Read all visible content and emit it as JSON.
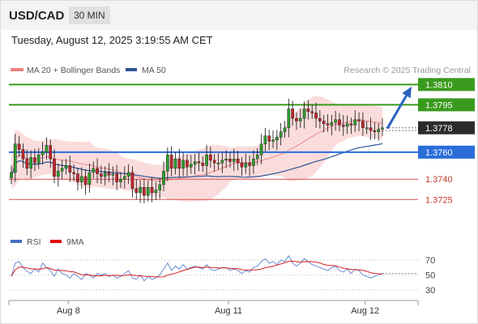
{
  "header": {
    "symbol": "USD/CAD",
    "timeframe": "30 MIN",
    "datetime": "Tuesday, August 12, 2025 3:19:55 AM CET"
  },
  "legend": {
    "ma20": "MA 20 + Bollinger Bands",
    "ma50": "MA 50",
    "ma20_color": "#f08080",
    "ma50_color": "#2e5597",
    "rsi": "RSI",
    "rsi_ma": "9MA",
    "rsi_color": "#4472c4",
    "rsi_ma_color": "#e00000"
  },
  "watermark": "Research © 2025 Trading Central",
  "chart_data": [
    {
      "type": "candlestick",
      "title": "",
      "x_ticks": [
        "Aug 8",
        "Aug 11",
        "Aug 12"
      ],
      "ylim": [
        1.3712,
        1.3815
      ],
      "last_price": "1.3778",
      "levels": [
        {
          "label": "1.3810",
          "value": 1.381,
          "kind": "target",
          "color": "#3a9a1e"
        },
        {
          "label": "1.3795",
          "value": 1.3795,
          "kind": "resistance",
          "color": "#3a9a1e"
        },
        {
          "label": "1.3760",
          "value": 1.376,
          "kind": "pivot",
          "color": "#2a6dd9"
        },
        {
          "label": "1.3740",
          "value": 1.374,
          "kind": "support",
          "color": "#d85050"
        },
        {
          "label": "1.3725",
          "value": 1.3725,
          "kind": "support",
          "color": "#d85050"
        }
      ],
      "close": [
        1.3745,
        1.3766,
        1.3762,
        1.3755,
        1.3748,
        1.3756,
        1.3752,
        1.3758,
        1.376,
        1.3765,
        1.3755,
        1.3742,
        1.3746,
        1.3748,
        1.375,
        1.3745,
        1.3744,
        1.3738,
        1.3742,
        1.3736,
        1.3745,
        1.3748,
        1.3744,
        1.3742,
        1.3745,
        1.3743,
        1.3744,
        1.3738,
        1.374,
        1.3742,
        1.3745,
        1.3733,
        1.373,
        1.3734,
        1.3728,
        1.3734,
        1.373,
        1.3732,
        1.3736,
        1.3746,
        1.3758,
        1.3748,
        1.3755,
        1.3748,
        1.3754,
        1.3749,
        1.3751,
        1.3753,
        1.3752,
        1.375,
        1.3758,
        1.3754,
        1.3752,
        1.3752,
        1.3754,
        1.3755,
        1.3753,
        1.3755,
        1.3752,
        1.3749,
        1.3752,
        1.375,
        1.3755,
        1.3758,
        1.3766,
        1.3772,
        1.3768,
        1.3769,
        1.3771,
        1.3775,
        1.3778,
        1.3792,
        1.3785,
        1.3783,
        1.3785,
        1.3792,
        1.379,
        1.3789,
        1.3785,
        1.3783,
        1.3781,
        1.378,
        1.3782,
        1.3784,
        1.378,
        1.3779,
        1.3781,
        1.378,
        1.3784,
        1.3783,
        1.3778,
        1.3778,
        1.3776,
        1.3775,
        1.3777,
        1.3778
      ],
      "ma20_end": 1.3782,
      "ma50_end": 1.3776
    },
    {
      "type": "line",
      "title": "",
      "series": [
        {
          "name": "RSI"
        },
        {
          "name": "9MA"
        }
      ],
      "y_ticks": [
        70,
        50,
        30
      ],
      "ylim": [
        20,
        80
      ],
      "rsi": [
        48,
        66,
        68,
        60,
        55,
        52,
        58,
        54,
        66,
        60,
        56,
        48,
        58,
        52,
        50,
        46,
        52,
        48,
        44,
        52,
        50,
        46,
        52,
        50,
        52,
        48,
        50,
        46,
        48,
        52,
        56,
        46,
        44,
        50,
        42,
        48,
        44,
        46,
        50,
        58,
        66,
        56,
        62,
        58,
        64,
        58,
        60,
        62,
        60,
        58,
        64,
        58,
        56,
        58,
        60,
        60,
        56,
        58,
        56,
        52,
        56,
        54,
        60,
        62,
        68,
        72,
        66,
        68,
        64,
        70,
        68,
        76,
        66,
        62,
        66,
        72,
        68,
        64,
        62,
        60,
        58,
        56,
        60,
        62,
        56,
        54,
        58,
        52,
        58,
        56,
        50,
        48,
        46,
        48,
        50,
        52
      ],
      "ma_end": 52
    }
  ]
}
